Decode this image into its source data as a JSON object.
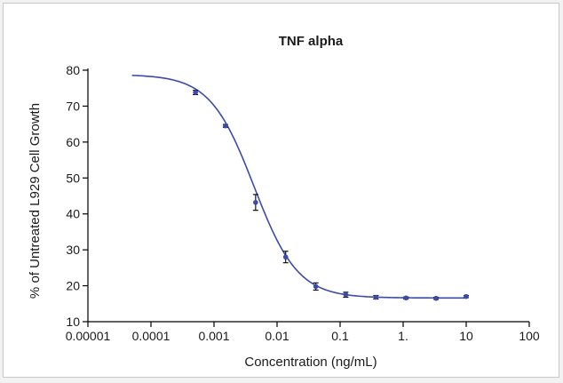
{
  "chart_data": {
    "type": "scatter",
    "title": "TNF alpha",
    "xlabel": "Concentration (ng/mL)",
    "ylabel": "% of Untreated L929 Cell Growth",
    "x_scale": "log",
    "xlim": [
      1e-05,
      100
    ],
    "ylim": [
      10,
      80
    ],
    "x_ticks": [
      1e-05,
      0.0001,
      0.001,
      0.01,
      0.1,
      1,
      10,
      100
    ],
    "x_tick_labels": [
      "0.00001",
      "0.0001",
      "0.001",
      "0.01",
      "0.1",
      "1.",
      "10",
      "100"
    ],
    "y_ticks": [
      10,
      20,
      30,
      40,
      50,
      60,
      70,
      80
    ],
    "y_tick_labels": [
      "10",
      "20",
      "30",
      "40",
      "50",
      "60",
      "70",
      "80"
    ],
    "grid": false,
    "series": [
      {
        "x": [
          0.000508,
          0.00152,
          0.00457,
          0.0137,
          0.0412,
          0.123,
          0.37,
          1.11,
          3.33,
          10
        ],
        "y": [
          73.8,
          64.5,
          43.2,
          28.0,
          19.8,
          17.5,
          16.8,
          16.6,
          16.5,
          17.0
        ],
        "error": [
          0.6,
          0.4,
          2.2,
          1.6,
          1.0,
          0.7,
          0.5,
          0.3,
          0.3,
          0.3
        ],
        "color": "#3c4aa8"
      }
    ],
    "fit": {
      "model": "4PL",
      "top": 78.8,
      "bottom": 16.6,
      "ec50": 0.0043,
      "hill": -1.25,
      "x_range": [
        5e-05,
        10
      ],
      "color": "#3c4aa8"
    }
  }
}
